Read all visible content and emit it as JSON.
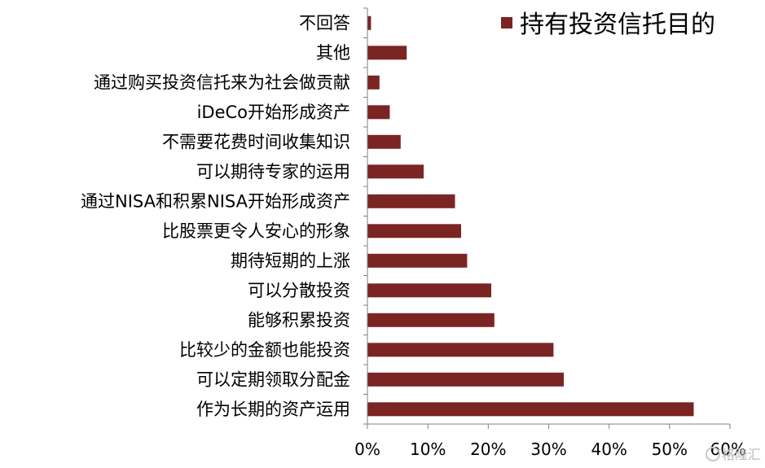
{
  "chart_data": {
    "type": "bar",
    "orientation": "horizontal",
    "categories": [
      "不回答",
      "其他",
      "通过购买投资信托来为社会做贡献",
      "iDeCo开始形成资产",
      "不需要花费时间收集知识",
      "可以期待专家的运用",
      "通过NISA和积累NISA开始形成资产",
      "比股票更令人安心的形象",
      "期待短期的上涨",
      "可以分散投资",
      "能够积累投资",
      "比较少的金额也能投资",
      "可以定期领取分配金",
      "作为长期的资产运用"
    ],
    "series": [
      {
        "name": "持有投资信托目的",
        "color": "#7b2424",
        "values": [
          0.6,
          6.5,
          2.0,
          3.7,
          5.5,
          9.3,
          14.5,
          15.5,
          16.5,
          20.5,
          21.0,
          30.8,
          32.5,
          54.0
        ]
      }
    ],
    "x_ticks": [
      "0%",
      "10%",
      "20%",
      "30%",
      "40%",
      "50%",
      "60%"
    ],
    "xlim": [
      0,
      60
    ],
    "xlabel": "",
    "ylabel": "",
    "grid": false,
    "legend_position": "top-right"
  },
  "watermark": "格隆汇"
}
